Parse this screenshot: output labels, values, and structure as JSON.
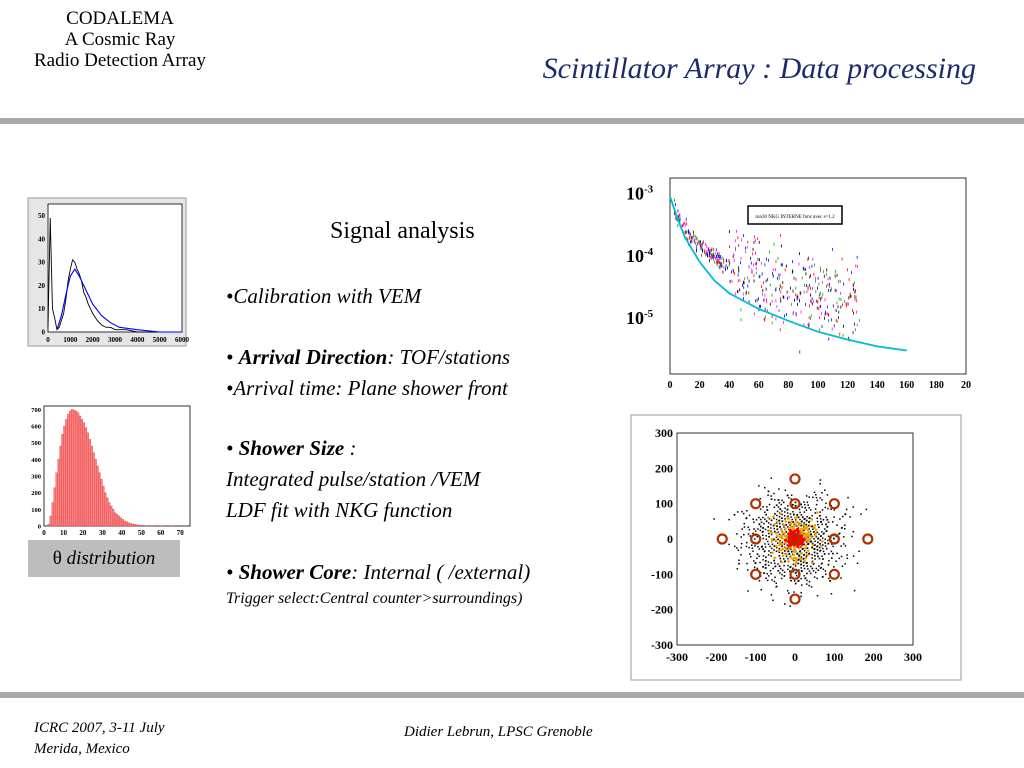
{
  "header": {
    "org_line1": "CODALEMA",
    "org_line2": "A Cosmic Ray",
    "org_line3": "Radio Detection Array",
    "title": "Scintillator Array : Data processing"
  },
  "colors": {
    "rule": "#a9a9a9",
    "title": "#1f2a6b",
    "hist_fill": "#ff8080",
    "fit": "#00bcd4"
  },
  "content": {
    "section_title": "Signal analysis",
    "bullet1": "•Calibration with VEM",
    "bullet2_bold": "Arrival Direction",
    "bullet2_rest": ": TOF/stations",
    "bullet3": "•Arrival time: Plane shower front",
    "bullet4_bold": "Shower Size",
    "bullet4_rest": " :",
    "bullet4_line2": "Integrated pulse/station /VEM",
    "bullet4_line3": "LDF fit with NKG function",
    "bullet5_bold": "Shower Core",
    "bullet5_rest": ": Internal ( /external)",
    "bullet5_line2": "Trigger select:Central counter>surroundings)"
  },
  "theta_caption": {
    "symbol": "θ",
    "text": " distribution"
  },
  "footer": {
    "conference": "ICRC 2007, 3-11 July",
    "location": "Merida, Mexico",
    "author": "Didier Lebrun, LPSC Grenoble"
  },
  "chart_data": [
    {
      "type": "line",
      "xlim": [
        0,
        6000
      ],
      "ylim": [
        0,
        55
      ],
      "x_ticks": [
        "0",
        "1000",
        "2000",
        "3000",
        "4000",
        "5000",
        "6000"
      ],
      "y_ticks": [
        "0",
        "10",
        "20",
        "30",
        "40",
        "50"
      ],
      "series": [
        {
          "color": "#000000",
          "x": [
            0,
            100,
            200,
            300,
            400,
            500,
            600,
            700,
            800,
            900,
            1000,
            1100,
            1200,
            1300,
            1400,
            1500,
            1600,
            1700,
            1800,
            1900,
            2000,
            2200,
            2400,
            2600,
            2800,
            3000,
            3500,
            4000,
            4500,
            5000,
            5500,
            6000
          ],
          "values": [
            2,
            49,
            10,
            6,
            1,
            2,
            5,
            8,
            14,
            22,
            27,
            31,
            30,
            27,
            25,
            22,
            17,
            15,
            12,
            10,
            8,
            5,
            3,
            2,
            2,
            1,
            1,
            0,
            0,
            0,
            0,
            0
          ]
        },
        {
          "color": "#0000ff",
          "x": [
            400,
            600,
            800,
            1000,
            1200,
            1400,
            1600,
            1800,
            2000,
            2400,
            2800,
            3200,
            4000,
            5000,
            6000
          ],
          "values": [
            1,
            7,
            16,
            24,
            27,
            24,
            20,
            16,
            12,
            7,
            4,
            2,
            1,
            0,
            0
          ]
        }
      ]
    },
    {
      "type": "bar",
      "xlim": [
        0,
        75
      ],
      "ylim": [
        0,
        720
      ],
      "x_ticks": [
        "0",
        "10",
        "20",
        "30",
        "40",
        "50",
        "60",
        "70"
      ],
      "y_ticks": [
        "0",
        "100",
        "200",
        "300",
        "400",
        "500",
        "600",
        "700"
      ],
      "bin_width": 1,
      "bin_starts": [
        2,
        3,
        4,
        5,
        6,
        7,
        8,
        9,
        10,
        11,
        12,
        13,
        14,
        15,
        16,
        17,
        18,
        19,
        20,
        21,
        22,
        23,
        24,
        25,
        26,
        27,
        28,
        29,
        30,
        31,
        32,
        33,
        34,
        35,
        36,
        37,
        38,
        39,
        40,
        41,
        42,
        43,
        44,
        45,
        46,
        47,
        48,
        49,
        50,
        52,
        55,
        60,
        65,
        70
      ],
      "values": [
        10,
        60,
        140,
        230,
        320,
        400,
        480,
        550,
        600,
        640,
        670,
        690,
        700,
        695,
        690,
        680,
        660,
        640,
        620,
        590,
        560,
        520,
        480,
        440,
        400,
        360,
        320,
        280,
        240,
        200,
        170,
        140,
        120,
        100,
        80,
        70,
        60,
        50,
        40,
        30,
        25,
        20,
        15,
        12,
        10,
        8,
        6,
        5,
        4,
        3,
        2,
        1,
        1,
        0
      ]
    },
    {
      "type": "scatter",
      "y_log": true,
      "xlim": [
        0,
        200
      ],
      "x_ticks": [
        "0",
        "20",
        "40",
        "60",
        "80",
        "100",
        "120",
        "140",
        "160",
        "180",
        "20"
      ],
      "y_ticks": [
        "10-3",
        "10-4",
        "10-5"
      ],
      "legend_text": "run30 NKG INTERNE  fonc avec s=1.2",
      "fit": {
        "color": "#00bcd4",
        "x": [
          0,
          5,
          10,
          20,
          30,
          40,
          60,
          80,
          100,
          120,
          140,
          160
        ],
        "values": [
          0.0009,
          0.0004,
          0.0002,
          8e-05,
          4e-05,
          2.5e-05,
          1.4e-05,
          9e-06,
          6e-06,
          4.5e-06,
          3.5e-06,
          3e-06
        ]
      }
    },
    {
      "type": "scatter",
      "xlim": [
        -300,
        300
      ],
      "ylim": [
        -300,
        300
      ],
      "x_ticks": [
        "-300",
        "-200",
        "-100",
        "0",
        "100",
        "200",
        "300"
      ],
      "y_ticks": [
        "300",
        "200",
        "100",
        "0",
        "-100",
        "-200",
        "-300"
      ],
      "stations": [
        [
          0,
          0
        ],
        [
          -100,
          100
        ],
        [
          0,
          100
        ],
        [
          100,
          100
        ],
        [
          -100,
          0
        ],
        [
          100,
          0
        ],
        [
          -100,
          -100
        ],
        [
          0,
          -100
        ],
        [
          100,
          -100
        ],
        [
          -185,
          0
        ],
        [
          185,
          0
        ],
        [
          0,
          170
        ],
        [
          0,
          -170
        ]
      ]
    }
  ]
}
